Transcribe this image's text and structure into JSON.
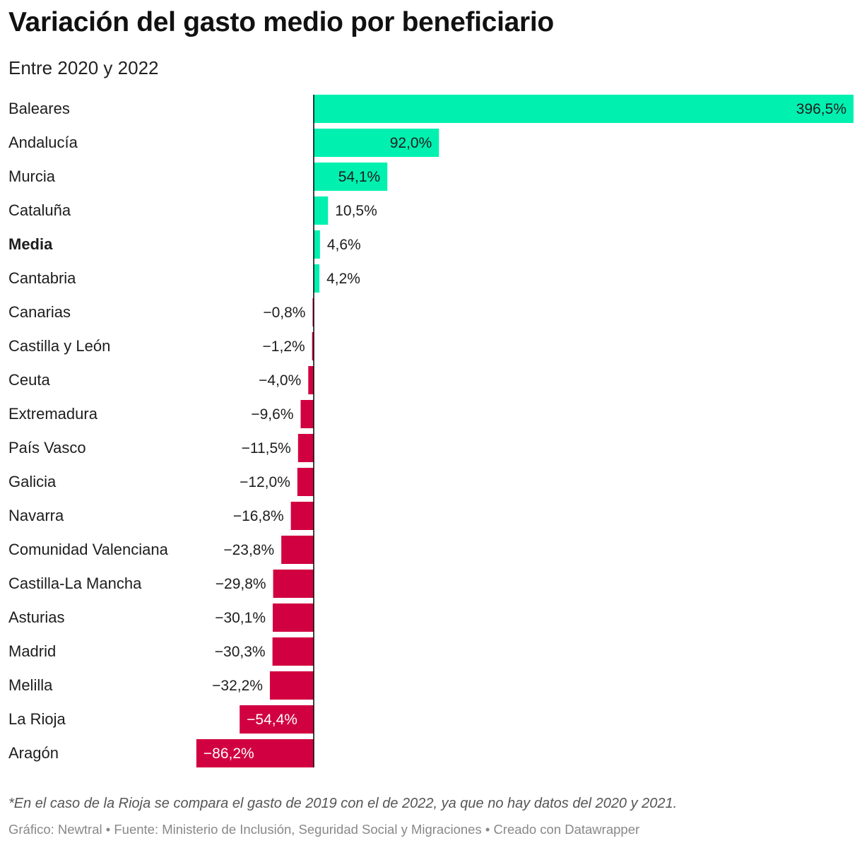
{
  "title": "Variación del gasto medio por beneficiario",
  "subtitle": "Entre 2020 y 2022",
  "notes": "*En el caso de la Rioja se compara el gasto de 2019 con el de 2022, ya que no hay datos del 2020 y 2021.",
  "credit": "Gráfico: Newtral • Fuente: Ministerio de Inclusión, Seguridad Social y Migraciones • Creado con Datawrapper",
  "colors": {
    "positive": "#00f0b0",
    "negative": "#d10040",
    "text": "#1d1d1d",
    "axis": "#000000"
  },
  "chart_data": {
    "type": "bar",
    "orientation": "horizontal",
    "title": "Variación del gasto medio por beneficiario",
    "subtitle": "Entre 2020 y 2022",
    "unit": "%",
    "xlim": [
      -86.2,
      396.5
    ],
    "highlight": [
      "Media"
    ],
    "categories": [
      "Baleares",
      "Andalucía",
      "Murcia",
      "Cataluña",
      "Media",
      "Cantabria",
      "Canarias",
      "Castilla y León",
      "Ceuta",
      "Extremadura",
      "País Vasco",
      "Galicia",
      "Navarra",
      "Comunidad Valenciana",
      "Castilla-La Mancha",
      "Asturias",
      "Madrid",
      "Melilla",
      "La Rioja",
      "Aragón"
    ],
    "values": [
      396.5,
      92.0,
      54.1,
      10.5,
      4.6,
      4.2,
      -0.8,
      -1.2,
      -4.0,
      -9.6,
      -11.5,
      -12.0,
      -16.8,
      -23.8,
      -29.8,
      -30.1,
      -30.3,
      -32.2,
      -54.4,
      -86.2
    ],
    "labels": [
      "396,5%",
      "92,0%",
      "54,1%",
      "10,5%",
      "4,6%",
      "4,2%",
      "−0,8%",
      "−1,2%",
      "−4,0%",
      "−9,6%",
      "−11,5%",
      "−12,0%",
      "−16,8%",
      "−23,8%",
      "−29,8%",
      "−30,1%",
      "−30,3%",
      "−32,2%",
      "−54,4%",
      "−86,2%"
    ]
  }
}
